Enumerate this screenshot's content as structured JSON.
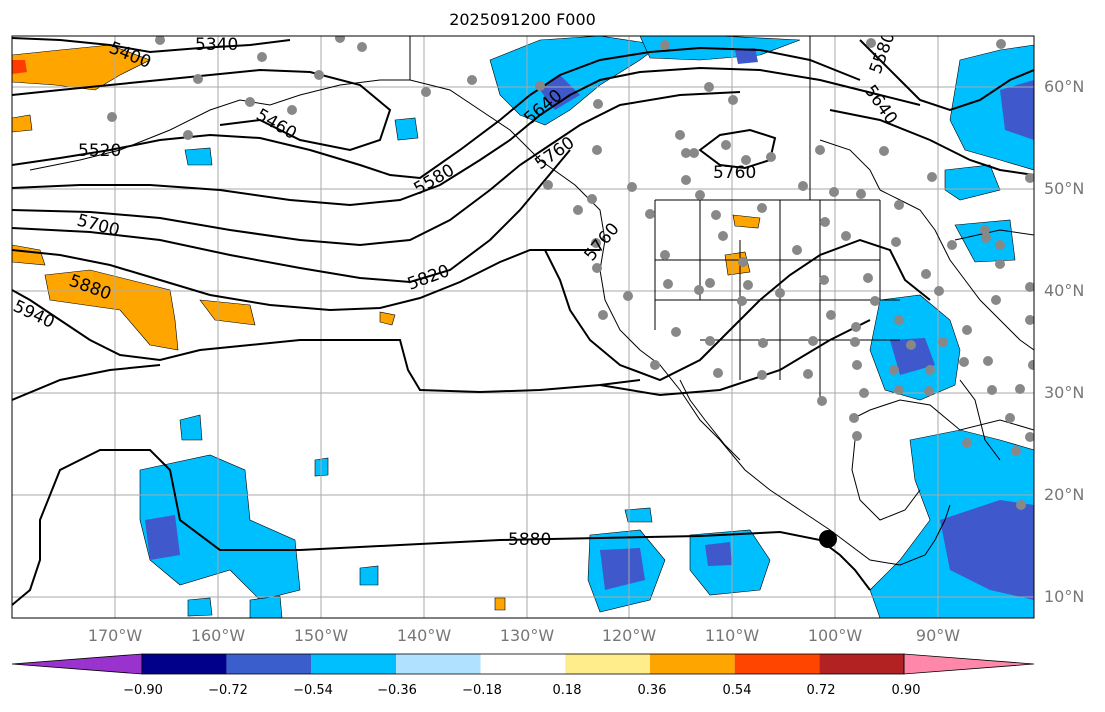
{
  "title": "2025091200 F000",
  "colors": {
    "strong_neg": "#3f58cc",
    "mid_neg": "#00bfff",
    "weak_neg": "#b0e0ff",
    "weak_pos": "#ffe98a",
    "mid_pos": "#ffa500",
    "strong_pos": "#ff3c00",
    "contour": "#000000",
    "stations": "#888888",
    "grid": "#aaaaaa"
  },
  "map": {
    "lat_labels": [
      "60°N",
      "50°N",
      "40°N",
      "30°N",
      "20°N",
      "10°N"
    ],
    "lon_labels": [
      "170°W",
      "160°W",
      "150°W",
      "140°W",
      "130°W",
      "120°W",
      "110°W",
      "100°W",
      "90°W"
    ],
    "contour_labels": [
      "5400",
      "5340",
      "5460",
      "5520",
      "5580",
      "5640",
      "5760",
      "5700",
      "5820",
      "5880",
      "5940",
      "5760",
      "5760",
      "5580",
      "5640",
      "5880"
    ],
    "marker": "current-position-marker"
  },
  "colorbar": {
    "ticks": [
      "−0.90",
      "−0.72",
      "−0.54",
      "−0.36",
      "−0.18",
      "0.18",
      "0.36",
      "0.54",
      "0.72",
      "0.90"
    ],
    "colors": [
      "#9a32cd",
      "#00008b",
      "#3a5fcd",
      "#00bfff",
      "#b0e2ff",
      "#ffffff",
      "#ffec8b",
      "#ffa500",
      "#ff4500",
      "#b22222",
      "#ff88aa"
    ]
  }
}
